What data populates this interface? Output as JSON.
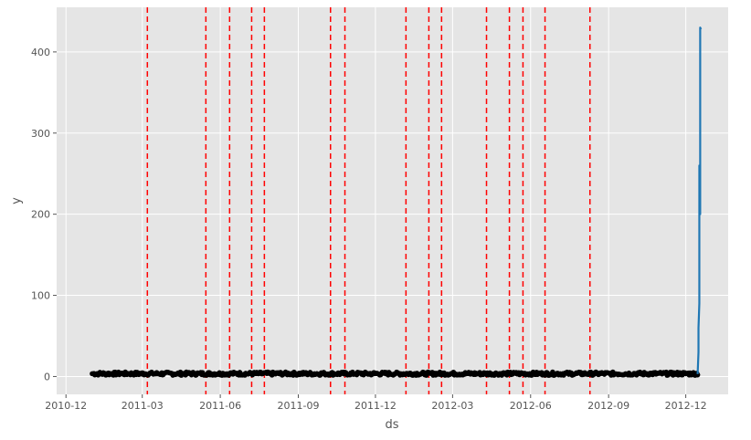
{
  "chart_data": {
    "type": "line",
    "title": "",
    "xlabel": "ds",
    "ylabel": "y",
    "xlim": [
      "2010-11-20",
      "2013-01-20"
    ],
    "ylim": [
      -22,
      455
    ],
    "x_ticks": [
      "2010-12",
      "2011-03",
      "2011-06",
      "2011-09",
      "2011-12",
      "2012-03",
      "2012-06",
      "2012-09",
      "2012-12"
    ],
    "y_ticks": [
      0,
      100,
      200,
      300,
      400
    ],
    "grid": true,
    "background_color": "#e5e5e5",
    "grid_color": "#ffffff",
    "observed_points": {
      "color": "#000000",
      "date_range": [
        "2011-01-01",
        "2012-12-15"
      ],
      "y_range": [
        1.5,
        5.5
      ]
    },
    "forecast_line": {
      "color": "#1f77b4",
      "points": [
        {
          "x": "2012-12-15",
          "y": 3
        },
        {
          "x": "2012-12-16",
          "y": 30
        },
        {
          "x": "2012-12-16",
          "y": 60
        },
        {
          "x": "2012-12-17",
          "y": 90
        },
        {
          "x": "2012-12-17",
          "y": 200
        },
        {
          "x": "2012-12-17",
          "y": 260
        },
        {
          "x": "2012-12-18",
          "y": 200
        },
        {
          "x": "2012-12-18",
          "y": 300
        },
        {
          "x": "2012-12-18",
          "y": 430
        },
        {
          "x": "2012-12-19",
          "y": 428
        }
      ]
    },
    "changepoints": {
      "color": "#ff0000",
      "style": "dashed",
      "dates": [
        "2011-03-07",
        "2011-05-15",
        "2011-06-12",
        "2011-07-08",
        "2011-07-23",
        "2011-10-09",
        "2011-10-26",
        "2012-01-06",
        "2012-02-02",
        "2012-02-17",
        "2012-04-10",
        "2012-05-07",
        "2012-05-23",
        "2012-06-18",
        "2012-08-10"
      ]
    }
  }
}
